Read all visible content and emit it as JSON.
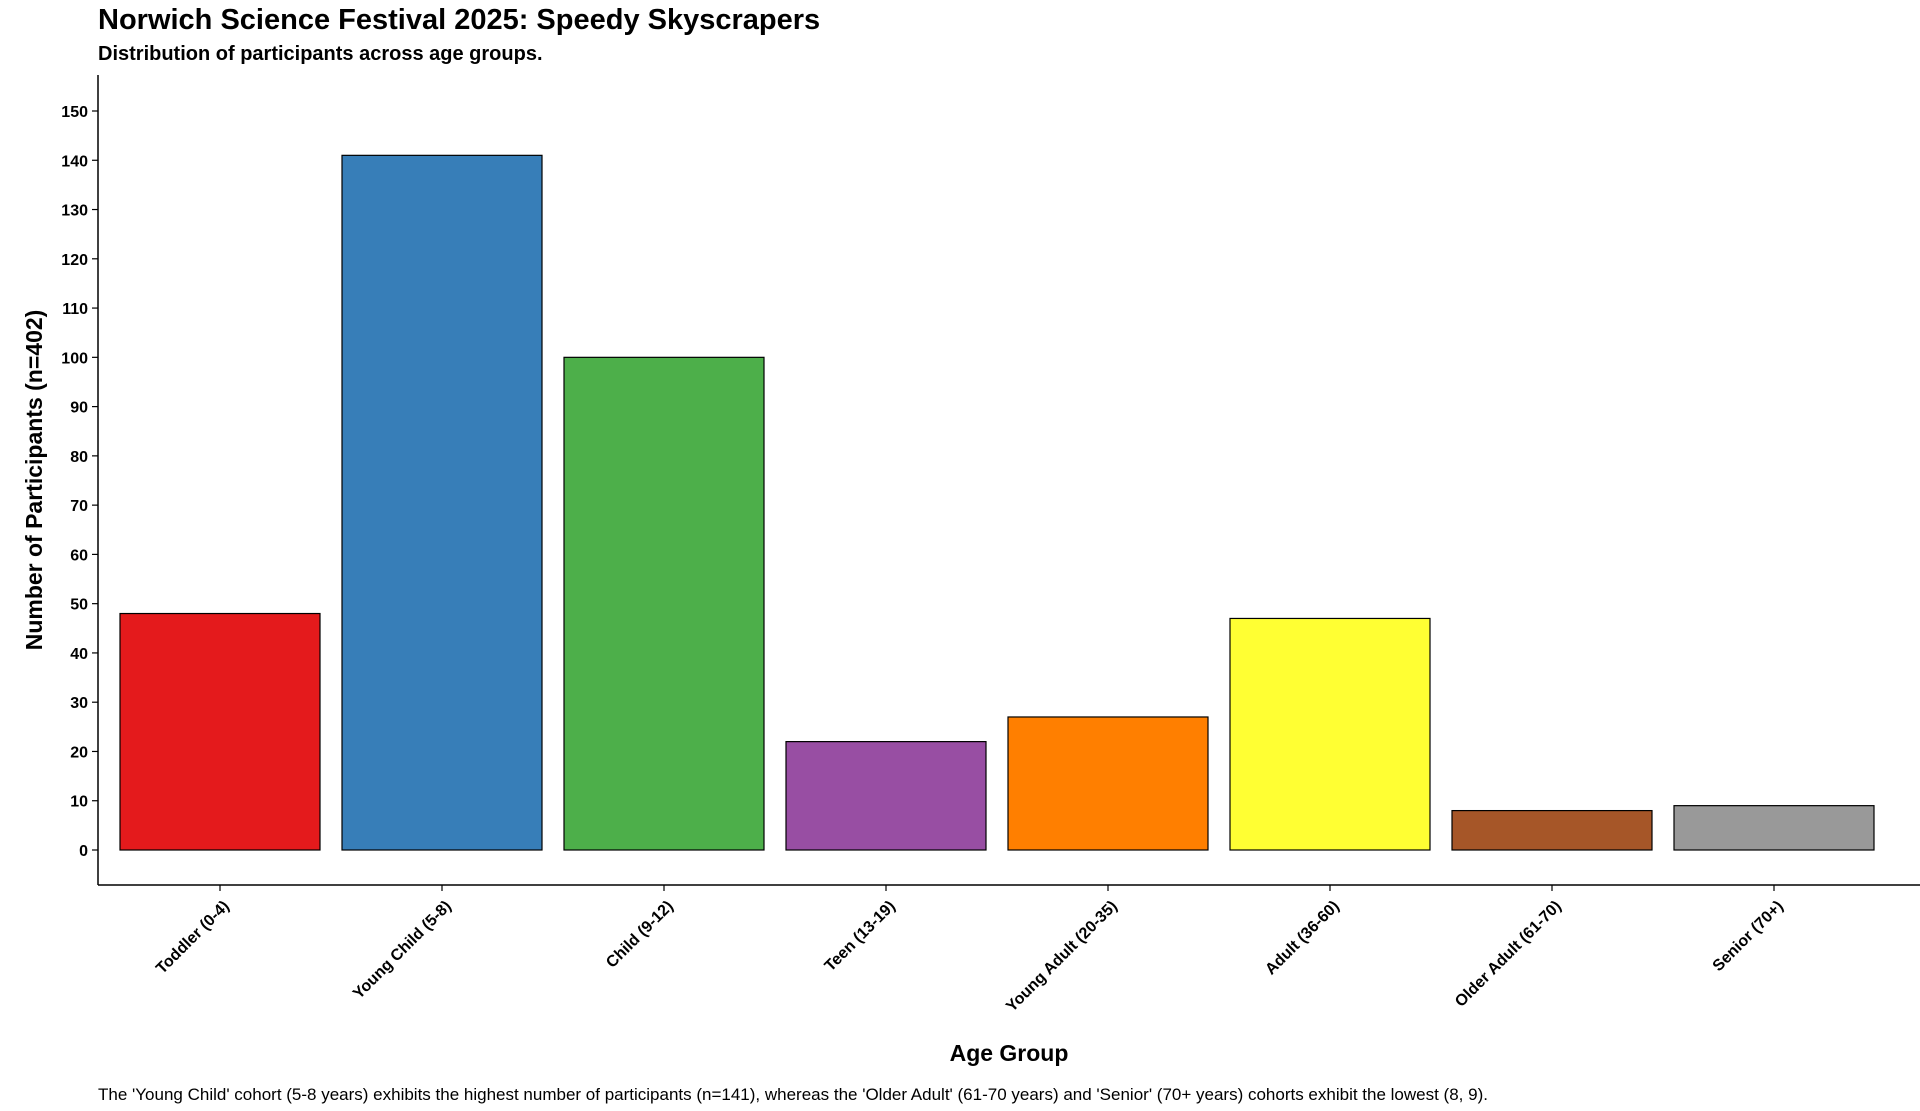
{
  "chart_data": {
    "type": "bar",
    "title": "Norwich Science Festival 2025: Speedy Skyscrapers",
    "subtitle": "Distribution of participants across age groups.",
    "xlabel": "Age Group",
    "ylabel": "Number of Participants (n=402)",
    "categories": [
      "Toddler (0-4)",
      "Young Child (5-8)",
      "Child (9-12)",
      "Teen (13-19)",
      "Young Adult (20-35)",
      "Adult (36-60)",
      "Older Adult (61-70)",
      "Senior (70+)"
    ],
    "values": [
      48,
      141,
      100,
      22,
      27,
      47,
      8,
      9
    ],
    "colors": [
      "#E41A1C",
      "#377EB8",
      "#4DAF4A",
      "#984EA3",
      "#FF7F00",
      "#FFFF33",
      "#A65628",
      "#999999"
    ],
    "ylim": [
      0,
      150
    ],
    "yticks": [
      0,
      10,
      20,
      30,
      40,
      50,
      60,
      70,
      80,
      90,
      100,
      110,
      120,
      130,
      140,
      150
    ],
    "grid": false,
    "legend": "none",
    "caption": "The 'Young Child' cohort (5-8 years) exhibits the highest number of participants (n=141), whereas the 'Older Adult' (61-70 years) and 'Senior' (70+ years) cohorts exhibit the lowest (8, 9)."
  }
}
